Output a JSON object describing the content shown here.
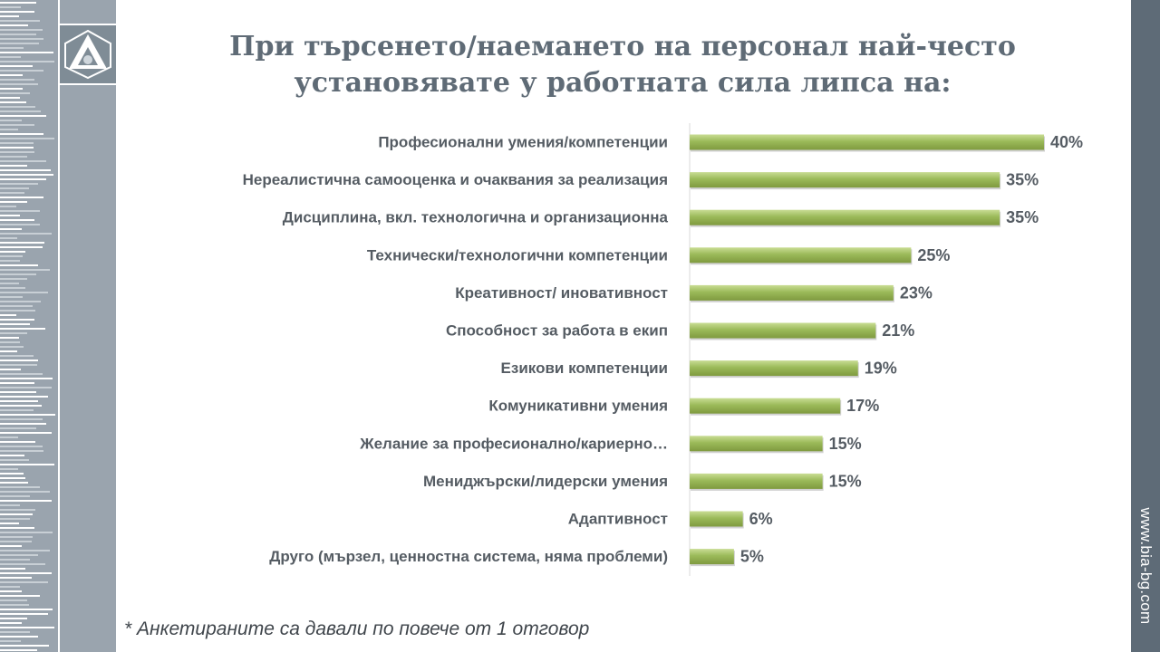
{
  "title_line1": "При търсенето/наемането на персонал най-често",
  "title_line2": "установявате у работната сила липса на:",
  "footnote": "* Анкетираните са давали по повече от 1 отговор",
  "site_url": "www.bia-bg.com",
  "logo_icon": "bia-logo-icon",
  "colors": {
    "bar": "#9bba59",
    "bar_dark": "#7f9a3f",
    "side_panel": "#9aa4ae",
    "right_panel": "#5e6b77",
    "title": "#5f6b76"
  },
  "chart_data": {
    "type": "bar",
    "orientation": "horizontal",
    "categories": [
      "Професионални умения/компетенции",
      "Нереалистична самооценка и очаквания за реализация",
      "Дисциплина, вкл. технологична и организационна",
      "Технически/технологични компетенции",
      "Креативност/ иновативност",
      "Способност за работа в екип",
      "Езикови компетенции",
      "Комуникативни умения",
      "Желание за професионално/кариерно…",
      "Мениджърски/лидерски умения",
      "Адаптивност",
      "Друго (мързел, ценностна система, няма проблеми)"
    ],
    "values": [
      40,
      35,
      35,
      25,
      23,
      21,
      19,
      17,
      15,
      15,
      6,
      5
    ],
    "value_labels": [
      "40%",
      "35%",
      "35%",
      "25%",
      "23%",
      "21%",
      "19%",
      "17%",
      "15%",
      "15%",
      "6%",
      "5%"
    ],
    "unit": "%",
    "xlim": [
      0,
      40
    ],
    "grid": false,
    "legend": "none"
  }
}
